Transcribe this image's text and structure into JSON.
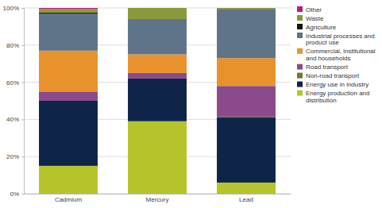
{
  "chart_data": {
    "type": "bar",
    "stacked": true,
    "grid": true,
    "legend": "right",
    "categories": [
      "Cadmium",
      "Mercury",
      "Lead"
    ],
    "ylim": [
      0,
      100
    ],
    "yticks": [
      {
        "value": 0,
        "label": "0%"
      },
      {
        "value": 20,
        "label": "20%"
      },
      {
        "value": 40,
        "label": "40%"
      },
      {
        "value": 60,
        "label": "60%"
      },
      {
        "value": 80,
        "label": "80%"
      },
      {
        "value": 100,
        "label": "100%"
      }
    ],
    "series": [
      {
        "name": "Energy production and distribution",
        "color": "#b5c42b",
        "values": [
          15,
          39,
          6
        ]
      },
      {
        "name": "Energy use in industry",
        "color": "#0e2549",
        "values": [
          35,
          23,
          35
        ]
      },
      {
        "name": "Non-road transport",
        "color": "#6b7d2a",
        "values": [
          0,
          0,
          0.5
        ]
      },
      {
        "name": "Road transport",
        "color": "#8a4a8c",
        "values": [
          5,
          3,
          16.5
        ]
      },
      {
        "name": "Commercial, Institutional and households",
        "color": "#e8922e",
        "values": [
          22,
          10,
          15
        ]
      },
      {
        "name": "Industrial processes and product use",
        "color": "#5f7489",
        "values": [
          20,
          19,
          26.5
        ]
      },
      {
        "name": "Agriculture",
        "color": "#111111",
        "values": [
          0.5,
          0,
          0
        ]
      },
      {
        "name": "Waste",
        "color": "#8a9a3a",
        "values": [
          2,
          6,
          0.5
        ]
      },
      {
        "name": "Other",
        "color": "#c2187a",
        "values": [
          0.5,
          0,
          0
        ]
      }
    ]
  }
}
